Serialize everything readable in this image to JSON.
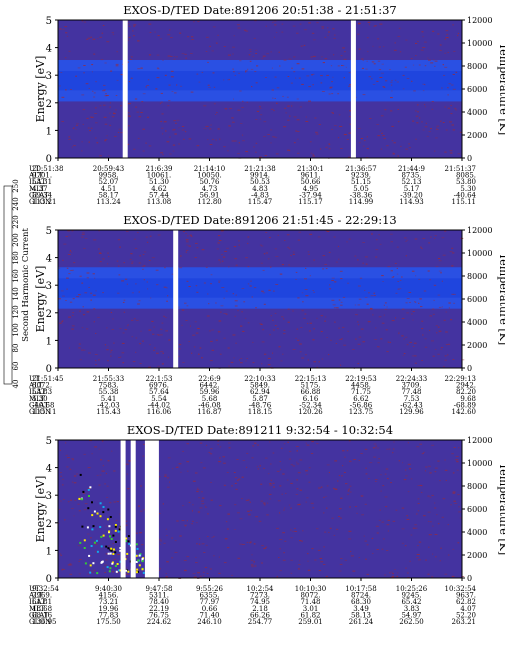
{
  "chart_data": [
    {
      "type": "heatmap",
      "title": "EXOS-D/TED   Date:891206  20:51:38 - 21:51:37",
      "ylabel": "Energy [eV]",
      "y2label": "Temperature [K]",
      "ylim": [
        0,
        5
      ],
      "y2lim": [
        0,
        12000
      ],
      "yticks": [
        "0",
        "1",
        "2",
        "3",
        "4",
        "5"
      ],
      "y2ticks": [
        "0",
        "2000",
        "4000",
        "6000",
        "8000",
        "10000",
        "12000"
      ],
      "band_center_ev": 2.8,
      "white_gaps": [
        0.165,
        0.73
      ],
      "row_labels": [
        "UT",
        "ALT",
        "ILAT",
        "MLT",
        "GLAT",
        "GLON"
      ],
      "columns": [
        [
          "20:51:38",
          "9701.",
          "53.31",
          "4.37",
          "59.34",
          "113.21"
        ],
        [
          "20:59:43",
          "9958.",
          "52.07",
          "4.51",
          "58.17",
          "113.24"
        ],
        [
          "21:6:39",
          "10061.",
          "51.30",
          "4.62",
          "57.44",
          "113.08"
        ],
        [
          "21:14:10",
          "10050.",
          "50.76",
          "4.73",
          "56.91",
          "112.80"
        ],
        [
          "21:21:38",
          "9914.",
          "50.53",
          "4.83",
          "-4.83",
          "115.47"
        ],
        [
          "21:30:1",
          "9611.",
          "50.66",
          "4.95",
          "-37.94",
          "115.17"
        ],
        [
          "21:36:57",
          "9239.",
          "51.15",
          "5.05",
          "-38.36",
          "114.99"
        ],
        [
          "21:44:9",
          "8735.",
          "52.13",
          "5.17",
          "-39.20",
          "114.93"
        ],
        [
          "21:51:37",
          "8085.",
          "53.80",
          "5.30",
          "-40.64",
          "115.11"
        ]
      ]
    },
    {
      "type": "heatmap",
      "title": "EXOS-D/TED   Date:891206  21:51:45 - 22:29:13",
      "ylabel": "Energy [eV]",
      "y2label": "Temperature [K]",
      "ylim": [
        0,
        5
      ],
      "y2lim": [
        0,
        12000
      ],
      "yticks": [
        "0",
        "1",
        "2",
        "3",
        "4",
        "5"
      ],
      "y2ticks": [
        "0",
        "2000",
        "4000",
        "6000",
        "8000",
        "10000",
        "12000"
      ],
      "band_center_ev": 2.9,
      "white_gaps": [
        0.29
      ],
      "row_labels": [
        "UT",
        "ALT",
        "ILAT",
        "MLT",
        "GLAT",
        "GLON"
      ],
      "columns": [
        [
          "21:51:45",
          "8072.",
          "53.83",
          "5.30",
          "-40.68",
          "115.11"
        ],
        [
          "21:55:33",
          "7583.",
          "55.38",
          "5.41",
          "-42.03",
          "115.43"
        ],
        [
          "22:1:53",
          "6976.",
          "57.64",
          "5.54",
          "-44.02",
          "116.06"
        ],
        [
          "22:6:9",
          "6442.",
          "59.96",
          "5.68",
          "-46.08",
          "116.87"
        ],
        [
          "22:10:33",
          "5849.",
          "62.94",
          "5.87",
          "-48.76",
          "118.15"
        ],
        [
          "22:15:13",
          "5175.",
          "66.88",
          "6.16",
          "-52.34",
          "120.26"
        ],
        [
          "22:19:53",
          "4458.",
          "71.75",
          "6.62",
          "-56.86",
          "123.75"
        ],
        [
          "22:24:33",
          "3709.",
          "77.48",
          "7.53",
          "-62.43",
          "129.96"
        ],
        [
          "22:29:13",
          "2942.",
          "82.20",
          "9.68",
          "-68.89",
          "142.60"
        ]
      ]
    },
    {
      "type": "heatmap",
      "title": "EXOS-D/TED   Date:891211  9:32:54 - 10:32:54",
      "ylabel": "Energy [eV]",
      "y2label": "Temperature [K]",
      "ylim": [
        0,
        5
      ],
      "y2lim": [
        0,
        12000
      ],
      "yticks": [
        "0",
        "1",
        "2",
        "3",
        "4",
        "5"
      ],
      "y2ticks": [
        "0",
        "2000",
        "4000",
        "6000",
        "8000",
        "10000",
        "12000"
      ],
      "band_center_ev": null,
      "white_gaps": [
        0.16,
        0.185,
        0.22
      ],
      "row_labels": [
        "UT",
        "ALT",
        "ILAT",
        "MLT",
        "GLAT",
        "GLON"
      ],
      "columns": [
        [
          "9:32:54",
          "2969.",
          "61.81",
          "18.68",
          "68.16",
          "136.95"
        ],
        [
          "9:40:30",
          "4156.",
          "73.21",
          "19.96",
          "77.83",
          "175.50"
        ],
        [
          "9:47:58",
          "5311.",
          "78.40",
          "22.19",
          "76.75",
          "224.62"
        ],
        [
          "9:55:26",
          "6355.",
          "77.97",
          "0.66",
          "71.40",
          "246.10"
        ],
        [
          "10:2:54",
          "7273.",
          "74.95",
          "2.18",
          "66.26",
          "254.77"
        ],
        [
          "10:10:30",
          "8072.",
          "71.48",
          "3.01",
          "61.82",
          "259.01"
        ],
        [
          "10:17:58",
          "8724.",
          "68.30",
          "3.49",
          "58.13",
          "261.24"
        ],
        [
          "10:25:26",
          "9245.",
          "65.42",
          "3.83",
          "54.97",
          "262.50"
        ],
        [
          "10:32:54",
          "9637.",
          "62.82",
          "4.07",
          "52.20",
          "263.21"
        ]
      ]
    }
  ],
  "colorbar": {
    "label": "Second Harmonic Current",
    "ticks": [
      "40",
      "60",
      "80",
      "100",
      "120",
      "140",
      "160",
      "180",
      "200",
      "220",
      "240",
      "250"
    ],
    "colors": [
      "#000000",
      "#5a0070",
      "#3a1aa0",
      "#2233cc",
      "#1a66ee",
      "#11aaee",
      "#11ccaa",
      "#22cc33",
      "#99dd11",
      "#eeee00",
      "#ff9900",
      "#ff2200"
    ]
  },
  "colors": {
    "background": "#4433a0",
    "band": "#2656ee",
    "band_core": "#1e44dd",
    "noise": "#9a2a3a",
    "gap": "#ffffff"
  }
}
